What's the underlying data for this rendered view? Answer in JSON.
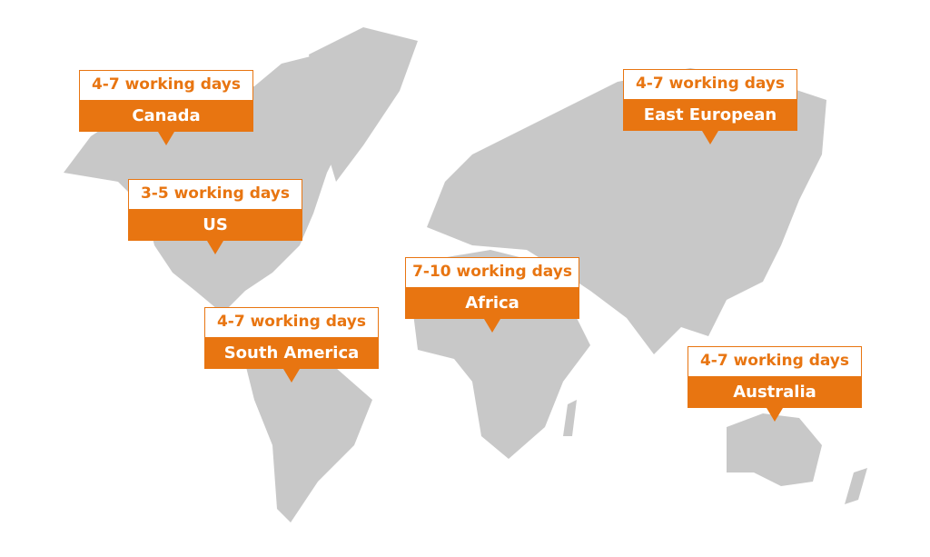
{
  "colors": {
    "accent": "#e87511",
    "land": "#c8c8c8"
  },
  "regions": [
    {
      "days": "4-7 working days",
      "name": "Canada"
    },
    {
      "days": "3-5 working days",
      "name": "US"
    },
    {
      "days": "4-7 working days",
      "name": "South America"
    },
    {
      "days": "7-10 working days",
      "name": "Africa"
    },
    {
      "days": "4-7 working days",
      "name": "East European"
    },
    {
      "days": "4-7 working days",
      "name": "Australia"
    }
  ]
}
